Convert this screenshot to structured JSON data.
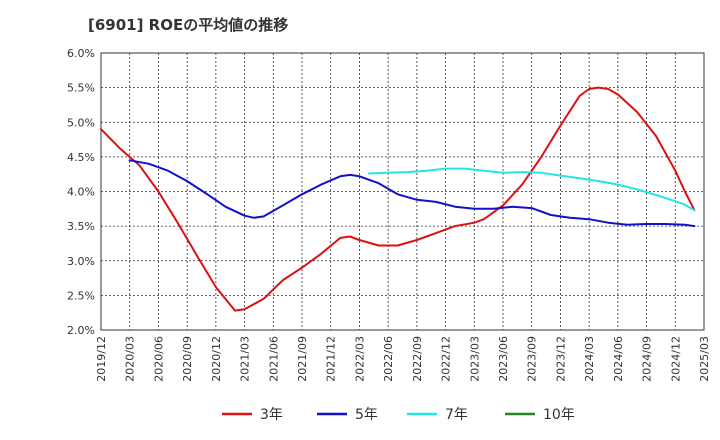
{
  "chart_data": {
    "type": "line",
    "title": "[6901]  ROEの平均値の推移",
    "xlabel": "",
    "ylabel": "",
    "ylim": [
      2.0,
      6.0
    ],
    "y_ticks": [
      "2.0%",
      "2.5%",
      "3.0%",
      "3.5%",
      "4.0%",
      "4.5%",
      "5.0%",
      "5.5%",
      "6.0%"
    ],
    "y_tick_values": [
      2.0,
      2.5,
      3.0,
      3.5,
      4.0,
      4.5,
      5.0,
      5.5,
      6.0
    ],
    "x_tick_labels": [
      "2019/12",
      "2020/03",
      "2020/06",
      "2020/09",
      "2020/12",
      "2021/03",
      "2021/06",
      "2021/09",
      "2021/12",
      "2022/03",
      "2022/06",
      "2022/09",
      "2022/12",
      "2023/03",
      "2023/06",
      "2023/09",
      "2023/12",
      "2024/03",
      "2024/06",
      "2024/09",
      "2024/12",
      "2025/03"
    ],
    "x_range_months": [
      0,
      63
    ],
    "grid": true,
    "legend_position": "bottom",
    "series": [
      {
        "name": "3年",
        "color": "#dd1111",
        "points": [
          [
            0,
            4.9
          ],
          [
            2,
            4.62
          ],
          [
            4,
            4.38
          ],
          [
            6,
            4.0
          ],
          [
            8,
            3.55
          ],
          [
            10,
            3.08
          ],
          [
            12,
            2.62
          ],
          [
            14,
            2.28
          ],
          [
            15,
            2.3
          ],
          [
            17,
            2.45
          ],
          [
            19,
            2.72
          ],
          [
            21,
            2.9
          ],
          [
            23,
            3.1
          ],
          [
            25,
            3.33
          ],
          [
            26,
            3.35
          ],
          [
            27,
            3.3
          ],
          [
            29,
            3.22
          ],
          [
            31,
            3.22
          ],
          [
            33,
            3.3
          ],
          [
            35,
            3.4
          ],
          [
            37,
            3.5
          ],
          [
            39,
            3.55
          ],
          [
            40,
            3.6
          ],
          [
            42,
            3.8
          ],
          [
            44,
            4.1
          ],
          [
            46,
            4.5
          ],
          [
            48,
            4.95
          ],
          [
            50,
            5.38
          ],
          [
            51,
            5.48
          ],
          [
            52,
            5.5
          ],
          [
            53,
            5.48
          ],
          [
            54,
            5.4
          ],
          [
            56,
            5.15
          ],
          [
            58,
            4.8
          ],
          [
            60,
            4.3
          ],
          [
            61,
            4.0
          ],
          [
            62,
            3.73
          ]
        ]
      },
      {
        "name": "5年",
        "color": "#1111cc",
        "points": [
          [
            3,
            4.45
          ],
          [
            5,
            4.4
          ],
          [
            7,
            4.3
          ],
          [
            9,
            4.15
          ],
          [
            11,
            3.97
          ],
          [
            13,
            3.78
          ],
          [
            15,
            3.65
          ],
          [
            16,
            3.62
          ],
          [
            17,
            3.64
          ],
          [
            19,
            3.8
          ],
          [
            21,
            3.96
          ],
          [
            23,
            4.1
          ],
          [
            25,
            4.22
          ],
          [
            26,
            4.24
          ],
          [
            27,
            4.22
          ],
          [
            29,
            4.12
          ],
          [
            31,
            3.96
          ],
          [
            33,
            3.88
          ],
          [
            35,
            3.85
          ],
          [
            37,
            3.78
          ],
          [
            39,
            3.75
          ],
          [
            41,
            3.75
          ],
          [
            43,
            3.78
          ],
          [
            45,
            3.76
          ],
          [
            47,
            3.66
          ],
          [
            49,
            3.62
          ],
          [
            51,
            3.6
          ],
          [
            53,
            3.55
          ],
          [
            55,
            3.52
          ],
          [
            57,
            3.53
          ],
          [
            59,
            3.53
          ],
          [
            61,
            3.52
          ],
          [
            62,
            3.5
          ]
        ]
      },
      {
        "name": "7年",
        "color": "#22e6e6",
        "points": [
          [
            28,
            4.26
          ],
          [
            30,
            4.27
          ],
          [
            32,
            4.28
          ],
          [
            34,
            4.3
          ],
          [
            36,
            4.33
          ],
          [
            38,
            4.33
          ],
          [
            40,
            4.3
          ],
          [
            42,
            4.27
          ],
          [
            44,
            4.28
          ],
          [
            46,
            4.27
          ],
          [
            48,
            4.23
          ],
          [
            50,
            4.19
          ],
          [
            52,
            4.15
          ],
          [
            54,
            4.1
          ],
          [
            56,
            4.03
          ],
          [
            58,
            3.95
          ],
          [
            60,
            3.86
          ],
          [
            61,
            3.81
          ],
          [
            62,
            3.73
          ]
        ]
      },
      {
        "name": "10年",
        "color": "#228822",
        "points": []
      }
    ]
  }
}
